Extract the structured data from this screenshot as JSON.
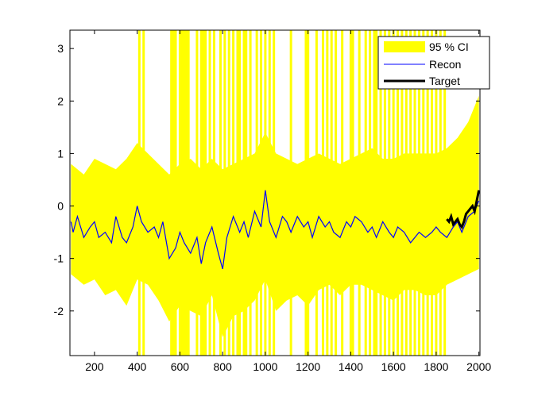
{
  "chart_data": {
    "type": "line",
    "title": "",
    "xlabel": "",
    "ylabel": "",
    "xlim": [
      85,
      2005
    ],
    "ylim": [
      -2.85,
      3.35
    ],
    "x_ticks": [
      200,
      400,
      600,
      800,
      1000,
      1200,
      1400,
      1600,
      1800,
      2000
    ],
    "y_ticks": [
      -2,
      -1,
      0,
      1,
      2,
      3
    ],
    "grid": false,
    "legend_location": "top-right",
    "legend": [
      "95 % CI",
      "Recon",
      "Target"
    ],
    "colors": {
      "ci": "#ffff00",
      "recon": "#0000ff",
      "target": "#000000"
    },
    "series": [
      {
        "name": "95 % CI",
        "kind": "band",
        "x": [
          90,
          150,
          200,
          250,
          300,
          350,
          400,
          450,
          500,
          550,
          600,
          650,
          700,
          750,
          800,
          850,
          900,
          950,
          1000,
          1050,
          1100,
          1150,
          1200,
          1250,
          1300,
          1350,
          1400,
          1450,
          1500,
          1550,
          1600,
          1650,
          1700,
          1750,
          1800,
          1850,
          1900,
          1950,
          2000
        ],
        "lower": [
          -1.3,
          -1.5,
          -1.4,
          -1.7,
          -1.6,
          -1.9,
          -1.4,
          -1.5,
          -1.8,
          -2.2,
          -1.9,
          -2.0,
          -2.1,
          -1.7,
          -2.5,
          -2.1,
          -2.0,
          -1.8,
          -1.4,
          -2.0,
          -1.8,
          -1.7,
          -1.9,
          -1.6,
          -1.5,
          -1.7,
          -1.5,
          -1.5,
          -1.6,
          -1.7,
          -1.8,
          -1.6,
          -1.6,
          -1.7,
          -1.7,
          -1.5,
          -1.4,
          -1.3,
          -1.2
        ],
        "upper": [
          0.8,
          0.6,
          0.9,
          0.8,
          0.7,
          0.9,
          1.2,
          1.0,
          0.8,
          0.6,
          0.8,
          0.9,
          0.7,
          0.9,
          0.7,
          0.8,
          0.9,
          1.0,
          1.4,
          1.0,
          0.9,
          0.8,
          0.9,
          1.0,
          0.9,
          0.8,
          0.9,
          1.0,
          1.1,
          0.9,
          0.9,
          1.0,
          1.0,
          1.0,
          1.0,
          1.1,
          1.3,
          1.6,
          2.1
        ],
        "spikes_to_axis_limits": [
          410,
          430,
          560,
          570,
          580,
          600,
          610,
          620,
          630,
          640,
          680,
          700,
          710,
          720,
          740,
          760,
          790,
          810,
          830,
          850,
          870,
          880,
          900,
          910,
          930,
          960,
          980,
          1000,
          1020,
          1040,
          1120,
          1190,
          1200,
          1240,
          1270,
          1290,
          1310,
          1330,
          1360,
          1400,
          1410,
          1440,
          1470,
          1490,
          1510,
          1520,
          1540,
          1560,
          1580,
          1600,
          1620,
          1640,
          1660,
          1680,
          1700,
          1720,
          1740,
          1760,
          1780,
          1800,
          1820,
          1840
        ]
      },
      {
        "name": "Recon",
        "kind": "line",
        "x": [
          90,
          100,
          120,
          150,
          180,
          200,
          220,
          250,
          280,
          300,
          330,
          350,
          380,
          400,
          420,
          450,
          480,
          500,
          520,
          550,
          580,
          600,
          620,
          650,
          680,
          700,
          720,
          750,
          780,
          800,
          820,
          850,
          880,
          900,
          920,
          950,
          980,
          1000,
          1020,
          1050,
          1080,
          1100,
          1120,
          1150,
          1180,
          1200,
          1220,
          1250,
          1280,
          1300,
          1320,
          1350,
          1380,
          1400,
          1420,
          1450,
          1480,
          1500,
          1520,
          1550,
          1580,
          1600,
          1620,
          1650,
          1680,
          1700,
          1720,
          1750,
          1780,
          1800,
          1820,
          1850,
          1880,
          1900,
          1920,
          1950,
          1980,
          2000
        ],
        "y": [
          -0.3,
          -0.5,
          -0.2,
          -0.6,
          -0.4,
          -0.3,
          -0.6,
          -0.5,
          -0.7,
          -0.2,
          -0.6,
          -0.7,
          -0.4,
          0.0,
          -0.3,
          -0.5,
          -0.4,
          -0.6,
          -0.3,
          -1.0,
          -0.8,
          -0.5,
          -0.7,
          -0.9,
          -0.6,
          -1.1,
          -0.7,
          -0.4,
          -0.9,
          -1.2,
          -0.6,
          -0.2,
          -0.5,
          -0.3,
          -0.6,
          -0.1,
          -0.4,
          0.3,
          -0.3,
          -0.6,
          -0.2,
          -0.3,
          -0.5,
          -0.2,
          -0.4,
          -0.3,
          -0.6,
          -0.2,
          -0.4,
          -0.3,
          -0.5,
          -0.6,
          -0.3,
          -0.4,
          -0.2,
          -0.3,
          -0.5,
          -0.4,
          -0.6,
          -0.3,
          -0.5,
          -0.6,
          -0.4,
          -0.5,
          -0.7,
          -0.6,
          -0.5,
          -0.6,
          -0.5,
          -0.4,
          -0.5,
          -0.6,
          -0.4,
          -0.3,
          -0.5,
          -0.2,
          -0.1,
          0.1
        ]
      },
      {
        "name": "Target",
        "kind": "line",
        "x": [
          1850,
          1860,
          1870,
          1880,
          1890,
          1900,
          1910,
          1920,
          1930,
          1940,
          1950,
          1960,
          1970,
          1980,
          1990,
          2000
        ],
        "y": [
          -0.25,
          -0.3,
          -0.2,
          -0.35,
          -0.3,
          -0.25,
          -0.35,
          -0.4,
          -0.3,
          -0.15,
          -0.1,
          -0.05,
          0.0,
          -0.1,
          0.1,
          0.3
        ]
      }
    ]
  }
}
